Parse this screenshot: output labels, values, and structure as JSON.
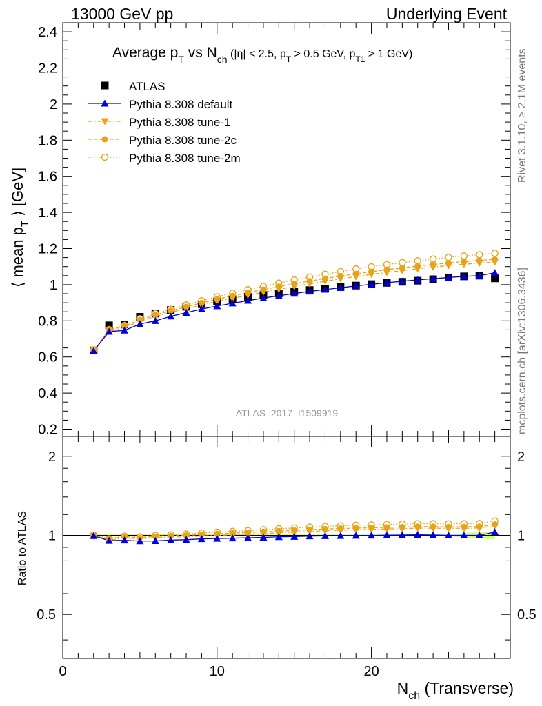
{
  "header": {
    "left": "13000 GeV pp",
    "right": "Underlying Event"
  },
  "title": {
    "main": "Average p",
    "main_sub": "T",
    "vs": " vs N",
    "vs_sub": "ch",
    "cuts_a": " (|η| < 2.5, p",
    "cuts_a_sub": "T",
    "cuts_b": " > 0.5 GeV, p",
    "cuts_b_sub": "T1",
    "cuts_c": " > 1 GeV)"
  },
  "side_labels": {
    "rivet": "Rivet 3.1.10, ≥ 2.1M events",
    "mcplots": "mcplots.cern.ch [arXiv:1306.3436]"
  },
  "watermark": "ATLAS_2017_I1509919",
  "axes": {
    "ylabel_a": "⟨ mean p",
    "ylabel_sub": "T",
    "ylabel_b": " ⟩ [GeV]",
    "ratio_ylabel": "Ratio to ATLAS",
    "xlabel_main": "N",
    "xlabel_sub": "ch",
    "xlabel_rest": " (Transverse)"
  },
  "legend": [
    "ATLAS",
    "Pythia 8.308 default",
    "Pythia 8.308 tune-1",
    "Pythia 8.308 tune-2c",
    "Pythia 8.308 tune-2m"
  ],
  "colors": {
    "atlas": "#000000",
    "default": "#0000dd",
    "tunes": "#e8a317",
    "band": "#ccff66"
  },
  "chart_data": {
    "type": "scatter",
    "x": [
      2,
      3,
      4,
      5,
      6,
      7,
      8,
      9,
      10,
      11,
      12,
      13,
      14,
      15,
      16,
      17,
      18,
      19,
      20,
      21,
      22,
      23,
      24,
      25,
      26,
      27,
      28
    ],
    "xlim": [
      0,
      29
    ],
    "ylim": [
      0.16,
      2.45
    ],
    "yticks": [
      "0.2",
      "0.4",
      "0.6",
      "0.8",
      "1",
      "1.2",
      "1.4",
      "1.6",
      "1.8",
      "2",
      "2.2",
      "2.4"
    ],
    "xticks": [
      "0",
      "10",
      "20"
    ],
    "ratio_ylim": [
      0.34,
      2.38
    ],
    "ratio_yticks": [
      "0.5",
      "1",
      "2"
    ],
    "series": [
      {
        "name": "ATLAS",
        "marker": "square",
        "values": [
          0.636,
          0.775,
          0.78,
          0.822,
          0.84,
          0.86,
          0.878,
          0.892,
          0.907,
          0.92,
          0.932,
          0.943,
          0.952,
          0.962,
          0.97,
          0.978,
          0.987,
          0.995,
          1.003,
          1.01,
          1.016,
          1.022,
          1.03,
          1.04,
          1.046,
          1.05,
          1.035
        ]
      },
      {
        "name": "Pythia 8.308 default",
        "marker": "triangle-up",
        "line": "solid",
        "values": [
          0.633,
          0.74,
          0.747,
          0.782,
          0.8,
          0.825,
          0.845,
          0.865,
          0.882,
          0.897,
          0.912,
          0.926,
          0.939,
          0.951,
          0.963,
          0.973,
          0.983,
          0.993,
          1.002,
          1.011,
          1.019,
          1.027,
          1.033,
          1.04,
          1.046,
          1.05,
          1.066
        ]
      },
      {
        "name": "Pythia 8.308 tune-1",
        "marker": "triangle-down",
        "line": "dashdot",
        "values": [
          0.633,
          0.742,
          0.763,
          0.797,
          0.823,
          0.847,
          0.867,
          0.887,
          0.907,
          0.924,
          0.942,
          0.958,
          0.974,
          0.99,
          1.005,
          1.019,
          1.033,
          1.045,
          1.057,
          1.068,
          1.078,
          1.088,
          1.097,
          1.106,
          1.113,
          1.12,
          1.125
        ]
      },
      {
        "name": "Pythia 8.308 tune-2c",
        "marker": "circle",
        "line": "dashed",
        "values": [
          0.633,
          0.75,
          0.77,
          0.805,
          0.832,
          0.856,
          0.878,
          0.899,
          0.92,
          0.938,
          0.956,
          0.973,
          0.989,
          1.005,
          1.02,
          1.034,
          1.048,
          1.06,
          1.072,
          1.083,
          1.093,
          1.103,
          1.112,
          1.12,
          1.128,
          1.134,
          1.14
        ]
      },
      {
        "name": "Pythia 8.308 tune-2m",
        "marker": "open-circle",
        "line": "dotted",
        "values": [
          0.638,
          0.752,
          0.775,
          0.812,
          0.84,
          0.864,
          0.888,
          0.911,
          0.933,
          0.953,
          0.972,
          0.991,
          1.009,
          1.026,
          1.043,
          1.058,
          1.073,
          1.087,
          1.099,
          1.111,
          1.122,
          1.132,
          1.142,
          1.151,
          1.159,
          1.166,
          1.174
        ]
      }
    ]
  }
}
